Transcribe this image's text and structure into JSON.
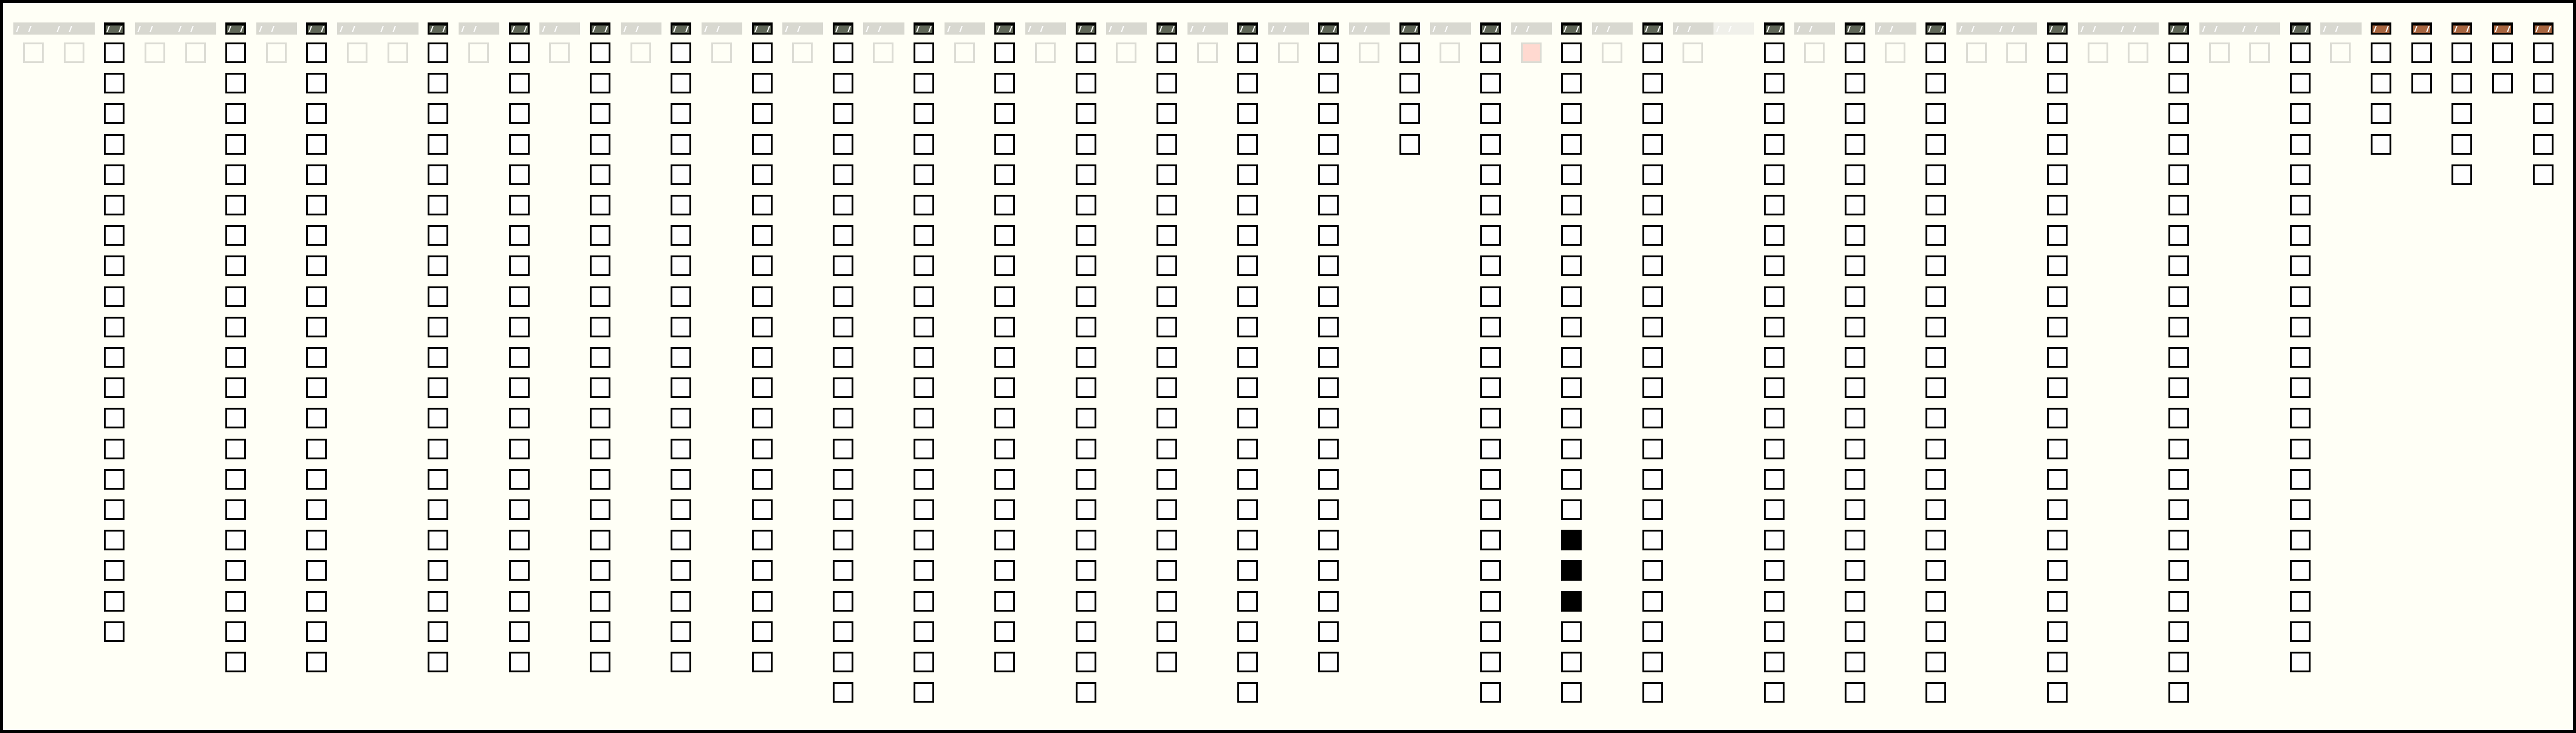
{
  "colors": {
    "background": "#fffff6",
    "active_header": "#5f6657",
    "accent_header": "#a8653f",
    "pink_cell": "#ffd9d0"
  },
  "columns": [
    {
      "state": "ghost"
    },
    {
      "state": "ghost"
    },
    {
      "state": "active",
      "rows": 20
    },
    {
      "state": "ghost"
    },
    {
      "state": "ghost"
    },
    {
      "state": "active",
      "rows": 21
    },
    {
      "state": "ghost"
    },
    {
      "state": "active",
      "rows": 21
    },
    {
      "state": "ghost"
    },
    {
      "state": "ghost"
    },
    {
      "state": "active",
      "rows": 21
    },
    {
      "state": "ghost"
    },
    {
      "state": "active",
      "rows": 21
    },
    {
      "state": "ghost"
    },
    {
      "state": "active",
      "rows": 21
    },
    {
      "state": "ghost"
    },
    {
      "state": "active",
      "rows": 21
    },
    {
      "state": "ghost"
    },
    {
      "state": "active",
      "rows": 21
    },
    {
      "state": "ghost"
    },
    {
      "state": "active",
      "rows": 22
    },
    {
      "state": "ghost"
    },
    {
      "state": "active",
      "rows": 22
    },
    {
      "state": "ghost"
    },
    {
      "state": "active",
      "rows": 21
    },
    {
      "state": "ghost"
    },
    {
      "state": "active",
      "rows": 22
    },
    {
      "state": "ghost"
    },
    {
      "state": "active",
      "rows": 21
    },
    {
      "state": "ghost"
    },
    {
      "state": "active",
      "rows": 22
    },
    {
      "state": "ghost"
    },
    {
      "state": "active",
      "rows": 21
    },
    {
      "state": "ghost"
    },
    {
      "state": "active",
      "rows": 4
    },
    {
      "state": "ghost"
    },
    {
      "state": "active",
      "rows": 22
    },
    {
      "state": "pink"
    },
    {
      "state": "active",
      "rows": 22,
      "filled": [
        16,
        17,
        18
      ]
    },
    {
      "state": "ghost"
    },
    {
      "state": "active",
      "rows": 22
    },
    {
      "state": "ghost"
    },
    {
      "state": "empty"
    },
    {
      "state": "active",
      "rows": 22
    },
    {
      "state": "ghost"
    },
    {
      "state": "active",
      "rows": 22
    },
    {
      "state": "ghost"
    },
    {
      "state": "active",
      "rows": 22
    },
    {
      "state": "ghost"
    },
    {
      "state": "ghost"
    },
    {
      "state": "active",
      "rows": 22
    },
    {
      "state": "ghost"
    },
    {
      "state": "ghost"
    },
    {
      "state": "active",
      "rows": 22
    },
    {
      "state": "ghost"
    },
    {
      "state": "ghost"
    },
    {
      "state": "active",
      "rows": 21
    },
    {
      "state": "ghost"
    },
    {
      "state": "active",
      "rows": 4,
      "header": "brown"
    },
    {
      "state": "active",
      "rows": 2,
      "header": "brown"
    },
    {
      "state": "active",
      "rows": 5,
      "header": "brown"
    },
    {
      "state": "active",
      "rows": 2,
      "header": "brown"
    },
    {
      "state": "active",
      "rows": 5,
      "header": "brown"
    }
  ]
}
